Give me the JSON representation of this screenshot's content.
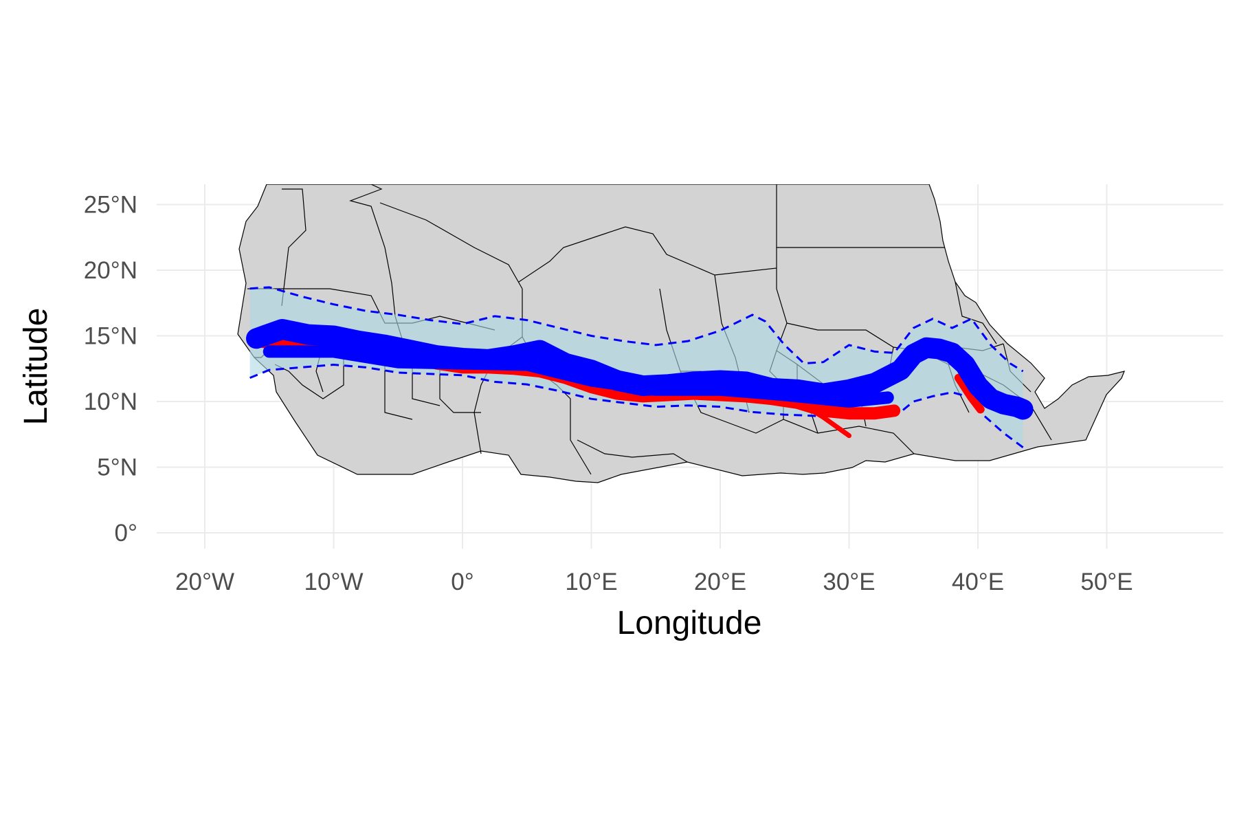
{
  "chart_data": {
    "type": "map",
    "xlabel": "Longitude",
    "ylabel": "Latitude",
    "x_ticks": [
      {
        "value": -20,
        "label": "20°W"
      },
      {
        "value": -10,
        "label": "10°W"
      },
      {
        "value": 0,
        "label": "0°"
      },
      {
        "value": 10,
        "label": "10°E"
      },
      {
        "value": 20,
        "label": "20°E"
      },
      {
        "value": 30,
        "label": "30°E"
      },
      {
        "value": 40,
        "label": "40°E"
      },
      {
        "value": 50,
        "label": "50°E"
      }
    ],
    "y_ticks": [
      {
        "value": 0,
        "label": "0°"
      },
      {
        "value": 5,
        "label": "5°N"
      },
      {
        "value": 10,
        "label": "10°N"
      },
      {
        "value": 15,
        "label": "15°N"
      },
      {
        "value": 20,
        "label": "20°N"
      },
      {
        "value": 25,
        "label": "25°N"
      }
    ],
    "xlim": [
      -24,
      58.5
    ],
    "ylim": [
      -1.3,
      26.3
    ],
    "grid": true,
    "colors": {
      "land": "#d3d3d3",
      "borders": "#000000",
      "grid": "#ebebeb",
      "band_fill": "#add8e6",
      "band_lines": "#0000ff",
      "red_series": "#ff0000",
      "blue_series": "#0000ff"
    },
    "band_upper": [
      [
        -16.5,
        18.6
      ],
      [
        -15,
        18.7
      ],
      [
        -12.5,
        18.0
      ],
      [
        -10,
        17.4
      ],
      [
        -7.5,
        16.9
      ],
      [
        -5,
        16.6
      ],
      [
        -2.5,
        16.2
      ],
      [
        0,
        15.9
      ],
      [
        2.5,
        16.5
      ],
      [
        5,
        16.2
      ],
      [
        7.5,
        15.6
      ],
      [
        10,
        15.0
      ],
      [
        12.5,
        14.6
      ],
      [
        15,
        14.3
      ],
      [
        17.5,
        14.6
      ],
      [
        20,
        15.4
      ],
      [
        22.5,
        16.6
      ],
      [
        23.5,
        16.1
      ],
      [
        25,
        14.3
      ],
      [
        26.5,
        12.9
      ],
      [
        28,
        13.0
      ],
      [
        30,
        14.3
      ],
      [
        32,
        13.8
      ],
      [
        33.5,
        13.7
      ],
      [
        35,
        15.6
      ],
      [
        36.5,
        16.3
      ],
      [
        38,
        15.6
      ],
      [
        39.5,
        16.3
      ],
      [
        41,
        14.3
      ],
      [
        42.5,
        12.9
      ],
      [
        43.5,
        12.3
      ]
    ],
    "band_lower": [
      [
        -16.5,
        11.8
      ],
      [
        -15,
        12.4
      ],
      [
        -12.5,
        12.6
      ],
      [
        -10,
        12.8
      ],
      [
        -7.5,
        12.6
      ],
      [
        -5,
        12.2
      ],
      [
        -2.5,
        12.1
      ],
      [
        0,
        12.0
      ],
      [
        2.5,
        11.5
      ],
      [
        5,
        11.3
      ],
      [
        7.5,
        10.8
      ],
      [
        10,
        10.2
      ],
      [
        12.5,
        9.9
      ],
      [
        15,
        9.6
      ],
      [
        17.5,
        9.7
      ],
      [
        20,
        9.6
      ],
      [
        22.5,
        9.2
      ],
      [
        25,
        9.0
      ],
      [
        27.5,
        8.9
      ],
      [
        30,
        9.0
      ],
      [
        32.5,
        9.1
      ],
      [
        34,
        9.2
      ],
      [
        35,
        10.0
      ],
      [
        36.5,
        10.4
      ],
      [
        38,
        10.7
      ],
      [
        39.5,
        10.3
      ],
      [
        40.5,
        8.9
      ],
      [
        42,
        7.6
      ],
      [
        43.5,
        6.5
      ]
    ],
    "red_track": [
      [
        -16,
        14.6
      ],
      [
        -12,
        14.2
      ],
      [
        -8,
        13.9
      ],
      [
        -4,
        13.6
      ],
      [
        -2,
        12.9
      ],
      [
        0,
        12.6
      ],
      [
        2,
        12.6
      ],
      [
        4,
        12.5
      ],
      [
        6,
        12.3
      ],
      [
        8,
        11.8
      ],
      [
        10,
        11.1
      ],
      [
        12,
        10.6
      ],
      [
        14,
        10.4
      ],
      [
        16,
        10.5
      ],
      [
        18,
        10.6
      ],
      [
        20,
        10.5
      ],
      [
        22,
        10.4
      ],
      [
        24,
        10.2
      ],
      [
        26,
        9.9
      ],
      [
        28,
        9.3
      ],
      [
        30,
        9.1
      ],
      [
        32,
        9.1
      ],
      [
        33.5,
        9.3
      ]
    ],
    "red_branch": [
      [
        26.5,
        9.7
      ],
      [
        28,
        8.8
      ],
      [
        30,
        7.4
      ]
    ],
    "red_east": [
      [
        38.5,
        11.8
      ],
      [
        39.5,
        10.3
      ],
      [
        40.2,
        9.4
      ]
    ],
    "blue_track": [
      [
        -16,
        14.8
      ],
      [
        -14,
        15.5
      ],
      [
        -12,
        15.1
      ],
      [
        -10,
        15.0
      ],
      [
        -8,
        14.6
      ],
      [
        -6,
        14.3
      ],
      [
        -4,
        13.9
      ],
      [
        -2,
        13.5
      ],
      [
        0,
        13.3
      ],
      [
        2,
        13.2
      ],
      [
        4,
        13.5
      ],
      [
        6,
        13.9
      ],
      [
        8,
        12.9
      ],
      [
        10,
        12.4
      ],
      [
        12,
        11.6
      ],
      [
        14,
        11.2
      ],
      [
        16,
        11.3
      ],
      [
        18,
        11.5
      ],
      [
        20,
        11.6
      ],
      [
        22,
        11.5
      ],
      [
        24,
        11.0
      ],
      [
        26,
        10.9
      ],
      [
        28,
        10.6
      ],
      [
        30,
        10.9
      ],
      [
        32,
        11.4
      ],
      [
        34,
        12.4
      ],
      [
        35,
        13.6
      ],
      [
        36,
        14.1
      ],
      [
        37,
        14.0
      ],
      [
        38,
        13.7
      ],
      [
        39,
        12.8
      ],
      [
        40,
        11.2
      ],
      [
        41,
        10.2
      ],
      [
        42,
        9.8
      ],
      [
        43,
        9.6
      ],
      [
        43.5,
        9.4
      ]
    ],
    "blue_lower": [
      [
        -15,
        13.8
      ],
      [
        -10,
        13.8
      ],
      [
        -5,
        13.0
      ],
      [
        0,
        12.9
      ],
      [
        5,
        12.8
      ],
      [
        10,
        11.6
      ],
      [
        15,
        10.9
      ],
      [
        20,
        10.9
      ],
      [
        25,
        10.5
      ],
      [
        30,
        10.0
      ],
      [
        33,
        10.3
      ]
    ]
  }
}
